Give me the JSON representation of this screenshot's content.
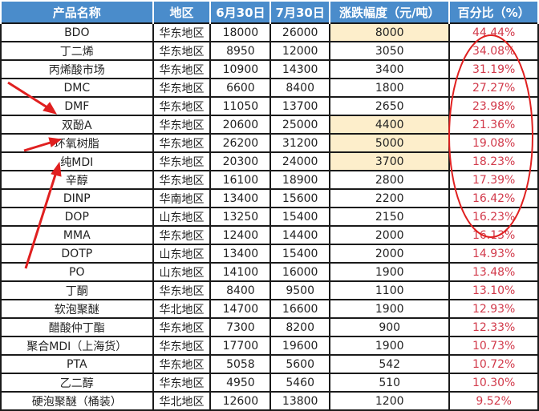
{
  "table": {
    "headers": [
      "产品名称",
      "地区",
      "6月30日",
      "7月30日",
      "涨跌幅度（元/吨）",
      "百分比（%）"
    ],
    "rows": [
      {
        "name": "BDO",
        "region": "华东地区",
        "jun30": "18000",
        "jul30": "26000",
        "change": "8000",
        "pct": "44.44%",
        "highlight": true
      },
      {
        "name": "丁二烯",
        "region": "华东地区",
        "jun30": "8950",
        "jul30": "12000",
        "change": "3050",
        "pct": "34.08%",
        "highlight": false
      },
      {
        "name": "丙烯酸市场",
        "region": "华东地区",
        "jun30": "10900",
        "jul30": "14300",
        "change": "3400",
        "pct": "31.19%",
        "highlight": false
      },
      {
        "name": "DMC",
        "region": "华东地区",
        "jun30": "6600",
        "jul30": "8400",
        "change": "1800",
        "pct": "27.27%",
        "highlight": false
      },
      {
        "name": "DMF",
        "region": "华东地区",
        "jun30": "11050",
        "jul30": "13700",
        "change": "2650",
        "pct": "23.98%",
        "highlight": false
      },
      {
        "name": "双酚A",
        "region": "华东地区",
        "jun30": "20600",
        "jul30": "25000",
        "change": "4400",
        "pct": "21.36%",
        "highlight": true
      },
      {
        "name": "环氧树脂",
        "region": "华东地区",
        "jun30": "26200",
        "jul30": "31200",
        "change": "5000",
        "pct": "19.08%",
        "highlight": true
      },
      {
        "name": "纯MDI",
        "region": "华东地区",
        "jun30": "20300",
        "jul30": "24000",
        "change": "3700",
        "pct": "18.23%",
        "highlight": true
      },
      {
        "name": "辛醇",
        "region": "华东地区",
        "jun30": "16100",
        "jul30": "18900",
        "change": "2800",
        "pct": "17.39%",
        "highlight": false
      },
      {
        "name": "DINP",
        "region": "华南地区",
        "jun30": "13400",
        "jul30": "15600",
        "change": "2200",
        "pct": "16.42%",
        "highlight": false
      },
      {
        "name": "DOP",
        "region": "山东地区",
        "jun30": "13250",
        "jul30": "15400",
        "change": "2150",
        "pct": "16.23%",
        "highlight": false
      },
      {
        "name": "MMA",
        "region": "华东地区",
        "jun30": "12400",
        "jul30": "14400",
        "change": "2000",
        "pct": "16.13%",
        "highlight": false
      },
      {
        "name": "DOTP",
        "region": "山东地区",
        "jun30": "13400",
        "jul30": "15400",
        "change": "2000",
        "pct": "14.93%",
        "highlight": false
      },
      {
        "name": "PO",
        "region": "山东地区",
        "jun30": "14100",
        "jul30": "16000",
        "change": "1900",
        "pct": "13.48%",
        "highlight": false
      },
      {
        "name": "丁酮",
        "region": "华东地区",
        "jun30": "8400",
        "jul30": "9500",
        "change": "1100",
        "pct": "13.10%",
        "highlight": false
      },
      {
        "name": "软泡聚醚",
        "region": "华北地区",
        "jun30": "14700",
        "jul30": "16600",
        "change": "1900",
        "pct": "12.93%",
        "highlight": false
      },
      {
        "name": "醋酸仲丁酯",
        "region": "华东地区",
        "jun30": "7300",
        "jul30": "8200",
        "change": "900",
        "pct": "12.33%",
        "highlight": false
      },
      {
        "name": "聚合MDI（上海货）",
        "region": "华东地区",
        "jun30": "17700",
        "jul30": "19600",
        "change": "1900",
        "pct": "10.73%",
        "highlight": false
      },
      {
        "name": "PTA",
        "region": "华东地区",
        "jun30": "5058",
        "jul30": "5600",
        "change": "542",
        "pct": "10.72%",
        "highlight": false
      },
      {
        "name": "乙二醇",
        "region": "华东地区",
        "jun30": "4950",
        "jul30": "5460",
        "change": "510",
        "pct": "10.30%",
        "highlight": false
      },
      {
        "name": "硬泡聚醚（桶装）",
        "region": "华北地区",
        "jun30": "12600",
        "jul30": "13800",
        "change": "1200",
        "pct": "9.52%",
        "highlight": false
      }
    ]
  },
  "annotations": {
    "color": "#e02020",
    "highlight_color": "#fdeecb",
    "header_color": "#4a8ccb",
    "percent_color": "#d23a4b"
  }
}
